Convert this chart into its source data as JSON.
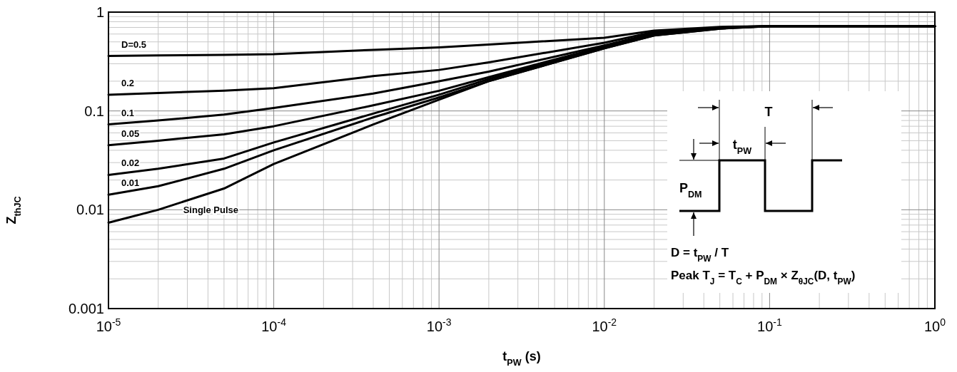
{
  "chart_data": {
    "type": "line",
    "xlabel": "t$_{PW}$ (s)",
    "ylabel": "Z$_{thJC}$",
    "log": "xy",
    "grid": true,
    "xlim": [
      1e-05,
      1
    ],
    "ylim": [
      0.001,
      1
    ],
    "xticks": [
      {
        "value": 1e-05,
        "label": "10$^{-5}$"
      },
      {
        "value": 0.0001,
        "label": "10$^{-4}$"
      },
      {
        "value": 0.001,
        "label": "10$^{-3}$"
      },
      {
        "value": 0.01,
        "label": "10$^{-2}$"
      },
      {
        "value": 0.1,
        "label": "10$^{-1}$"
      },
      {
        "value": 1,
        "label": "10$^{0}$"
      }
    ],
    "yticks": [
      0.001,
      0.01,
      0.1,
      1
    ],
    "x": [
      1e-05,
      2e-05,
      5e-05,
      0.0001,
      0.0004,
      0.001,
      0.002,
      0.01,
      0.02,
      0.05,
      0.1,
      1
    ],
    "series": [
      {
        "name": "D=0.5",
        "color": "#000000",
        "values": [
          0.36,
          0.365,
          0.37,
          0.375,
          0.415,
          0.44,
          0.47,
          0.55,
          0.65,
          0.71,
          0.72,
          0.72
        ]
      },
      {
        "name": "0.2",
        "color": "#000000",
        "values": [
          0.146,
          0.152,
          0.16,
          0.17,
          0.225,
          0.26,
          0.31,
          0.49,
          0.63,
          0.7,
          0.72,
          0.72
        ]
      },
      {
        "name": "0.1",
        "color": "#000000",
        "values": [
          0.073,
          0.08,
          0.092,
          0.107,
          0.15,
          0.2,
          0.25,
          0.46,
          0.61,
          0.7,
          0.72,
          0.72
        ]
      },
      {
        "name": "0.05",
        "color": "#000000",
        "values": [
          0.045,
          0.05,
          0.058,
          0.07,
          0.114,
          0.16,
          0.22,
          0.45,
          0.6,
          0.69,
          0.72,
          0.72
        ]
      },
      {
        "name": "0.02",
        "color": "#000000",
        "values": [
          0.0225,
          0.026,
          0.033,
          0.048,
          0.094,
          0.146,
          0.21,
          0.44,
          0.59,
          0.69,
          0.72,
          0.72
        ]
      },
      {
        "name": "0.01",
        "color": "#000000",
        "values": [
          0.0142,
          0.0173,
          0.026,
          0.04,
          0.086,
          0.137,
          0.2,
          0.43,
          0.58,
          0.68,
          0.72,
          0.72
        ]
      },
      {
        "name": "Single Pulse",
        "color": "#000000",
        "values": [
          0.0074,
          0.01,
          0.0164,
          0.029,
          0.073,
          0.13,
          0.2,
          0.43,
          0.58,
          0.68,
          0.72,
          0.72
        ]
      }
    ],
    "annotations": [
      "T",
      "t$_{PW}$",
      "P$_{DM}$",
      "D = t$_{PW}$ / T",
      "Peak T$_{J}$ = T$_{C}$ + P$_{DM}$ × Z$_{θJC}$(D, t$_{PW}$)"
    ]
  }
}
